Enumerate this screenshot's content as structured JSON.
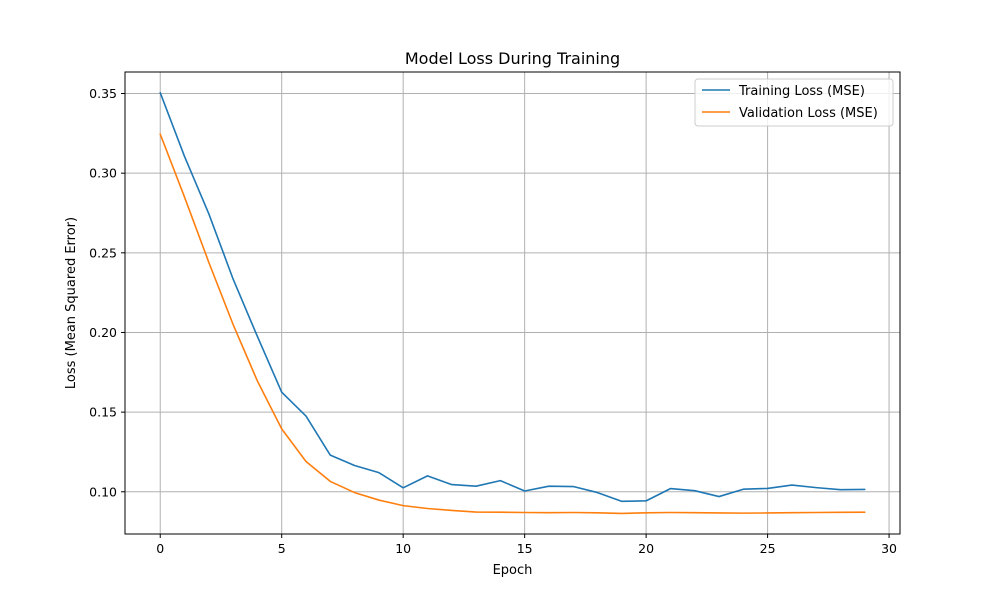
{
  "chart_data": {
    "type": "line",
    "title": "Model Loss During Training",
    "xlabel": "Epoch",
    "ylabel": "Loss (Mean Squared Error)",
    "xlim": [
      -1.45,
      30.45
    ],
    "ylim": [
      0.0735,
      0.3635
    ],
    "xticks": [
      0,
      5,
      10,
      15,
      20,
      25,
      30
    ],
    "xtick_labels": [
      "0",
      "5",
      "10",
      "15",
      "20",
      "25",
      "30"
    ],
    "yticks": [
      0.1,
      0.15,
      0.2,
      0.25,
      0.3,
      0.35
    ],
    "ytick_labels": [
      "0.10",
      "0.15",
      "0.20",
      "0.25",
      "0.30",
      "0.35"
    ],
    "grid": true,
    "legend_position": "top-right",
    "x": [
      0,
      1,
      2,
      3,
      4,
      5,
      6,
      7,
      8,
      9,
      10,
      11,
      12,
      13,
      14,
      15,
      16,
      17,
      18,
      19,
      20,
      21,
      22,
      23,
      24,
      25,
      26,
      27,
      28,
      29
    ],
    "series": [
      {
        "name": "Training Loss (MSE)",
        "color": "#1f77b4",
        "values": [
          0.3505,
          0.3105,
          0.2745,
          0.2335,
          0.1975,
          0.1625,
          0.1475,
          0.123,
          0.1165,
          0.112,
          0.1025,
          0.11,
          0.1045,
          0.1035,
          0.107,
          0.1005,
          0.1035,
          0.1033,
          0.0995,
          0.094,
          0.0943,
          0.102,
          0.1007,
          0.097,
          0.1016,
          0.1021,
          0.1042,
          0.1026,
          0.1013,
          0.1015
        ]
      },
      {
        "name": "Validation Loss (MSE)",
        "color": "#ff7f0e",
        "values": [
          0.3245,
          0.285,
          0.244,
          0.205,
          0.1695,
          0.1395,
          0.119,
          0.1065,
          0.0995,
          0.0948,
          0.0913,
          0.0895,
          0.0883,
          0.0873,
          0.0872,
          0.087,
          0.0869,
          0.087,
          0.0868,
          0.0864,
          0.0868,
          0.087,
          0.0869,
          0.0867,
          0.0866,
          0.0867,
          0.0869,
          0.087,
          0.0871,
          0.0872
        ]
      }
    ]
  }
}
